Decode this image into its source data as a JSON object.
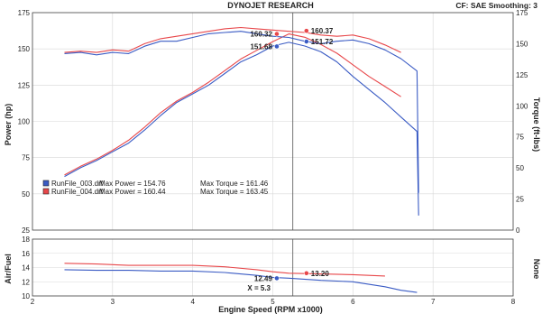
{
  "header": {
    "title": "DYNOJET RESEARCH",
    "settings": "CF: SAE  Smoothing: 3"
  },
  "colors": {
    "run1": "#3a5bc4",
    "run2": "#e8474a",
    "grid": "#d8d8d8",
    "axis": "#444444"
  },
  "chart_data": [
    {
      "type": "line",
      "panel": "main",
      "xlabel": "Engine Speed (RPM x1000)",
      "ylabel": "Power (hp)",
      "y2label": "Torque (ft-lbs)",
      "xlim": [
        2,
        8
      ],
      "ylim": [
        25,
        175
      ],
      "y2lim": [
        0,
        175
      ],
      "xticks": [
        "2",
        "3",
        "4",
        "5",
        "6",
        "7",
        "8"
      ],
      "yticks": [
        "25",
        "50",
        "75",
        "100",
        "125",
        "150",
        "175"
      ],
      "y2ticks": [
        "0",
        "25",
        "50",
        "75",
        "100",
        "125",
        "150",
        "175"
      ],
      "cursor_x": 5.25,
      "series": [
        {
          "name": "RunFile_003.drf",
          "measure": "power",
          "color_key": "run1",
          "x": [
            2.4,
            2.6,
            2.8,
            3.0,
            3.2,
            3.4,
            3.6,
            3.8,
            4.0,
            4.2,
            4.4,
            4.6,
            4.8,
            5.0,
            5.2,
            5.4,
            5.6,
            5.8,
            6.0,
            6.2,
            6.4,
            6.6,
            6.8,
            6.82
          ],
          "y": [
            62,
            68,
            73,
            79,
            85,
            94,
            104,
            113,
            119,
            125,
            133,
            141,
            146,
            152,
            154.5,
            152,
            148,
            141,
            131,
            122,
            113,
            103,
            93,
            35
          ]
        },
        {
          "name": "RunFile_004.drf",
          "measure": "power",
          "color_key": "run2",
          "x": [
            2.4,
            2.6,
            2.8,
            3.0,
            3.2,
            3.4,
            3.6,
            3.8,
            4.0,
            4.2,
            4.4,
            4.6,
            4.8,
            5.0,
            5.2,
            5.4,
            5.6,
            5.8,
            6.0,
            6.2,
            6.4,
            6.6
          ],
          "y": [
            63,
            69,
            74,
            80,
            87,
            96,
            106,
            114,
            120,
            127,
            135,
            143,
            149,
            155,
            160.3,
            158,
            153,
            147,
            139,
            131,
            124,
            117
          ]
        },
        {
          "name": "RunFile_003.drf",
          "measure": "torque",
          "color_key": "run1",
          "x": [
            2.4,
            2.6,
            2.8,
            3.0,
            3.2,
            3.4,
            3.6,
            3.8,
            4.0,
            4.2,
            4.4,
            4.6,
            4.8,
            5.0,
            5.2,
            5.4,
            5.6,
            5.8,
            6.0,
            6.2,
            6.4,
            6.6,
            6.8,
            6.82
          ],
          "y": [
            142,
            143,
            141,
            143,
            142,
            148,
            152,
            152,
            155,
            158,
            159,
            160,
            158,
            156,
            155,
            152,
            150,
            152,
            153,
            150,
            145,
            138,
            128,
            30
          ]
        },
        {
          "name": "RunFile_004.drf",
          "measure": "torque",
          "color_key": "run2",
          "x": [
            2.4,
            2.6,
            2.8,
            3.0,
            3.2,
            3.4,
            3.6,
            3.8,
            4.0,
            4.2,
            4.4,
            4.6,
            4.8,
            5.0,
            5.2,
            5.4,
            5.6,
            5.8,
            6.0,
            6.2,
            6.4,
            6.6
          ],
          "y": [
            143,
            144,
            143,
            145,
            144,
            150,
            154,
            156,
            158,
            160,
            162,
            163,
            162,
            161,
            160,
            159,
            157,
            156,
            157,
            154,
            149,
            143
          ]
        }
      ],
      "markers": [
        {
          "label": "160.32",
          "x": 5.05,
          "value": 160.32,
          "color_key": "run2",
          "side": "left"
        },
        {
          "label": "151.68",
          "x": 5.05,
          "value": 151.68,
          "color_key": "run1",
          "side": "left"
        },
        {
          "label": "160.37",
          "x": 5.42,
          "value": 160.37,
          "color_key": "run2",
          "side": "right"
        },
        {
          "label": "151.72",
          "x": 5.42,
          "value": 151.72,
          "color_key": "run1",
          "side": "right"
        }
      ],
      "legend": [
        {
          "color_key": "run1",
          "file": "RunFile_003.drf",
          "max_power": "Max Power = 154.76",
          "max_torque": "Max Torque = 161.46"
        },
        {
          "color_key": "run2",
          "file": "RunFile_004.drf",
          "max_power": "Max Power = 160.44",
          "max_torque": "Max Torque = 163.45"
        }
      ],
      "legend_position": "lower-left",
      "grid": true
    },
    {
      "type": "line",
      "panel": "air-fuel",
      "xlabel": "Engine Speed (RPM x1000)",
      "ylabel": "Air/Fuel",
      "y2label": "None",
      "xlim": [
        2,
        8
      ],
      "ylim": [
        10,
        18
      ],
      "yticks": [
        "10",
        "12",
        "14",
        "16",
        "18"
      ],
      "cursor_x": 5.25,
      "cursor_label": "X = 5.3",
      "series": [
        {
          "name": "RunFile_003.drf",
          "color_key": "run1",
          "x": [
            2.4,
            2.8,
            3.2,
            3.6,
            4.0,
            4.4,
            4.8,
            5.0,
            5.2,
            5.6,
            6.0,
            6.4,
            6.6,
            6.8
          ],
          "y": [
            13.7,
            13.6,
            13.6,
            13.5,
            13.5,
            13.3,
            12.9,
            12.6,
            12.5,
            12.2,
            12.0,
            11.3,
            10.8,
            10.5
          ]
        },
        {
          "name": "RunFile_004.drf",
          "color_key": "run2",
          "x": [
            2.4,
            2.8,
            3.2,
            3.6,
            4.0,
            4.4,
            4.8,
            5.0,
            5.2,
            5.6,
            6.0,
            6.4
          ],
          "y": [
            14.6,
            14.5,
            14.3,
            14.3,
            14.3,
            14.1,
            13.7,
            13.4,
            13.2,
            13.1,
            13.0,
            12.8
          ]
        }
      ],
      "markers": [
        {
          "label": "12.49",
          "x": 5.05,
          "value": 12.49,
          "color_key": "run1",
          "side": "left"
        },
        {
          "label": "13.20",
          "x": 5.42,
          "value": 13.2,
          "color_key": "run2",
          "side": "right"
        }
      ],
      "grid": true
    }
  ]
}
